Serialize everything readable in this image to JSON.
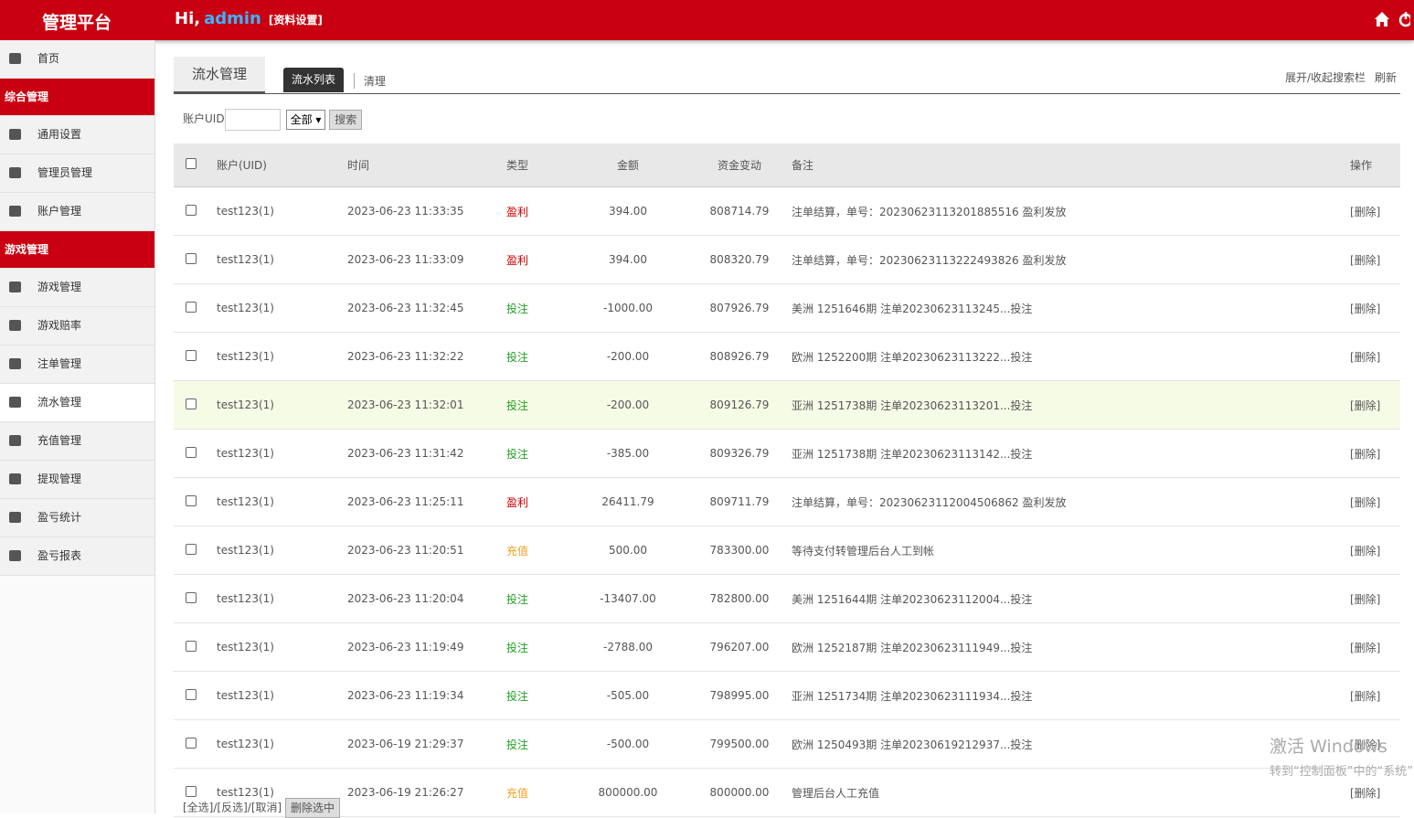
{
  "header": {
    "brand": "管理平台",
    "greeting": "Hi,",
    "user": "admin",
    "profile_link": "[资料设置]"
  },
  "sidebar": {
    "items": [
      {
        "label": "首页",
        "kind": "item"
      },
      {
        "label": "综合管理",
        "kind": "section"
      },
      {
        "label": "通用设置",
        "kind": "item"
      },
      {
        "label": "管理员管理",
        "kind": "item"
      },
      {
        "label": "账户管理",
        "kind": "item"
      },
      {
        "label": "游戏管理",
        "kind": "section"
      },
      {
        "label": "游戏管理",
        "kind": "item"
      },
      {
        "label": "游戏赔率",
        "kind": "item"
      },
      {
        "label": "注单管理",
        "kind": "item"
      },
      {
        "label": "流水管理",
        "kind": "active"
      },
      {
        "label": "充值管理",
        "kind": "item"
      },
      {
        "label": "提现管理",
        "kind": "item"
      },
      {
        "label": "盈亏统计",
        "kind": "item"
      },
      {
        "label": "盈亏报表",
        "kind": "item"
      }
    ]
  },
  "tabs": {
    "title": "流水管理",
    "active": "流水列表",
    "other": "清理",
    "toggle_search": "展开/收起搜索栏",
    "refresh": "刷新"
  },
  "search": {
    "label": "账户UID",
    "select": "全部",
    "button": "搜索"
  },
  "table": {
    "columns": [
      "账户(UID)",
      "时间",
      "类型",
      "金额",
      "资金变动",
      "备注",
      "操作"
    ],
    "rows": [
      {
        "account": "test123(1)",
        "time": "2023-06-23 11:33:35",
        "type": "盈利",
        "type_color": "#d40000",
        "amount": "394.00",
        "change": "808714.79",
        "note": "注单结算，单号：20230623113201885516 盈利发放",
        "action": "[删除]"
      },
      {
        "account": "test123(1)",
        "time": "2023-06-23 11:33:09",
        "type": "盈利",
        "type_color": "#d40000",
        "amount": "394.00",
        "change": "808320.79",
        "note": "注单结算，单号：20230623113222493826 盈利发放",
        "action": "[删除]"
      },
      {
        "account": "test123(1)",
        "time": "2023-06-23 11:32:45",
        "type": "投注",
        "type_color": "#22a022",
        "amount": "-1000.00",
        "change": "807926.79",
        "note": "美洲 1251646期 注单20230623113245...投注",
        "action": "[删除]"
      },
      {
        "account": "test123(1)",
        "time": "2023-06-23 11:32:22",
        "type": "投注",
        "type_color": "#22a022",
        "amount": "-200.00",
        "change": "808926.79",
        "note": "欧洲 1252200期 注单20230623113222...投注",
        "action": "[删除]"
      },
      {
        "account": "test123(1)",
        "time": "2023-06-23 11:32:01",
        "type": "投注",
        "type_color": "#22a022",
        "amount": "-200.00",
        "change": "809126.79",
        "note": "亚洲 1251738期 注单20230623113201...投注",
        "action": "[删除]"
      },
      {
        "account": "test123(1)",
        "time": "2023-06-23 11:31:42",
        "type": "投注",
        "type_color": "#22a022",
        "amount": "-385.00",
        "change": "809326.79",
        "note": "亚洲 1251738期 注单20230623113142...投注",
        "action": "[删除]"
      },
      {
        "account": "test123(1)",
        "time": "2023-06-23 11:25:11",
        "type": "盈利",
        "type_color": "#d40000",
        "amount": "26411.79",
        "change": "809711.79",
        "note": "注单结算，单号：20230623112004506862 盈利发放",
        "action": "[删除]"
      },
      {
        "account": "test123(1)",
        "time": "2023-06-23 11:20:51",
        "type": "充值",
        "type_color": "#f0a020",
        "amount": "500.00",
        "change": "783300.00",
        "note": "等待支付转管理后台人工到帐",
        "action": "[删除]"
      },
      {
        "account": "test123(1)",
        "time": "2023-06-23 11:20:04",
        "type": "投注",
        "type_color": "#22a022",
        "amount": "-13407.00",
        "change": "782800.00",
        "note": "美洲 1251644期 注单20230623112004...投注",
        "action": "[删除]"
      },
      {
        "account": "test123(1)",
        "time": "2023-06-23 11:19:49",
        "type": "投注",
        "type_color": "#22a022",
        "amount": "-2788.00",
        "change": "796207.00",
        "note": "欧洲 1252187期 注单20230623111949...投注",
        "action": "[删除]"
      },
      {
        "account": "test123(1)",
        "time": "2023-06-23 11:19:34",
        "type": "投注",
        "type_color": "#22a022",
        "amount": "-505.00",
        "change": "798995.00",
        "note": "亚洲 1251734期 注单20230623111934...投注",
        "action": "[删除]"
      },
      {
        "account": "test123(1)",
        "time": "2023-06-19 21:29:37",
        "type": "投注",
        "type_color": "#22a022",
        "amount": "-500.00",
        "change": "799500.00",
        "note": "欧洲 1250493期 注单20230619212937...投注",
        "action": "[删除]"
      },
      {
        "account": "test123(1)",
        "time": "2023-06-19 21:26:27",
        "type": "充值",
        "type_color": "#f0a020",
        "amount": "800000.00",
        "change": "800000.00",
        "note": "管理后台人工充值",
        "action": "[删除]"
      }
    ]
  },
  "footer": {
    "select_links": "[全选]/[反选]/[取消]",
    "delete_button": "删除选中"
  },
  "watermark": {
    "line1": "激活 Windows",
    "line2": "转到“控制面板”中的“系统”"
  }
}
